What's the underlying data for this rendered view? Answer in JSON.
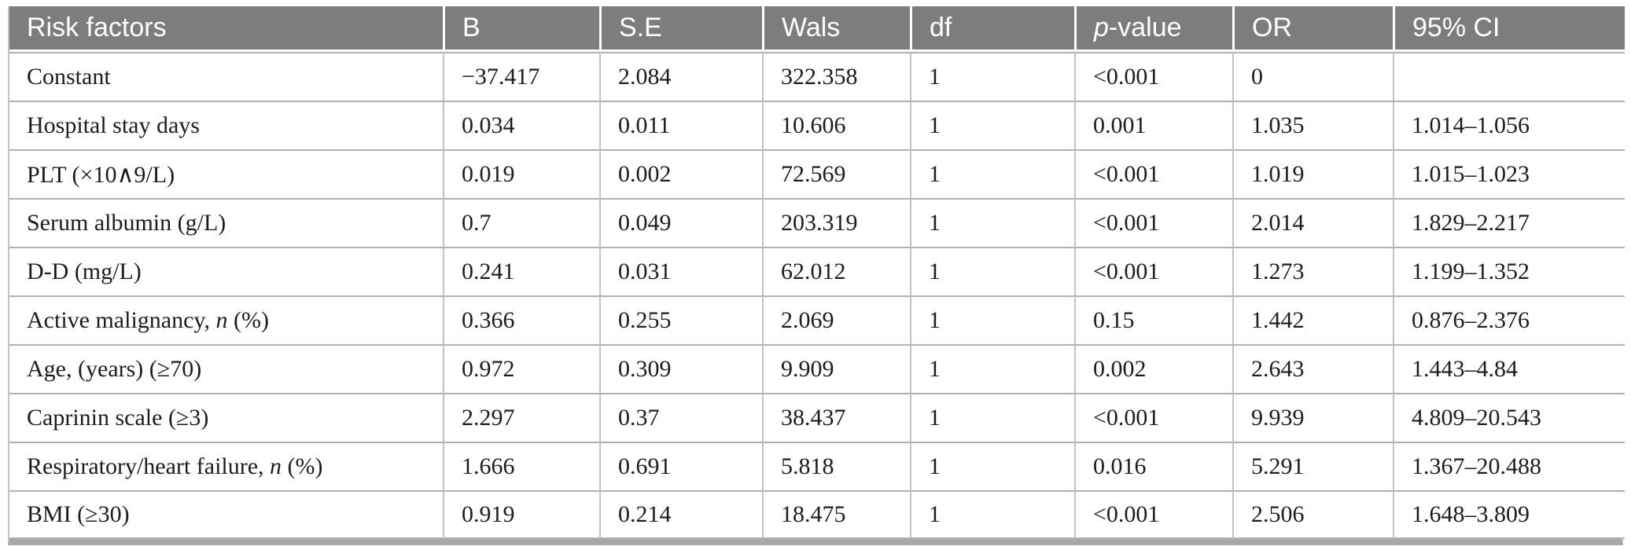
{
  "table": {
    "title": "Risk factors logistic regression table",
    "columns": [
      "Risk factors",
      "B",
      "S.E",
      "Wals",
      "df",
      "*p*-value",
      "OR",
      "95% CI"
    ],
    "rows": [
      [
        "Constant",
        "−37.417",
        "2.084",
        "322.358",
        "1",
        "<0.001",
        "0",
        ""
      ],
      [
        "Hospital stay days",
        "0.034",
        "0.011",
        "10.606",
        "1",
        "0.001",
        "1.035",
        "1.014–1.056"
      ],
      [
        "PLT (×10∧9/L)",
        "0.019",
        "0.002",
        "72.569",
        "1",
        "<0.001",
        "1.019",
        "1.015–1.023"
      ],
      [
        "Serum albumin (g/L)",
        "0.7",
        "0.049",
        "203.319",
        "1",
        "<0.001",
        "2.014",
        "1.829–2.217"
      ],
      [
        "D-D (mg/L)",
        "0.241",
        "0.031",
        "62.012",
        "1",
        "<0.001",
        "1.273",
        "1.199–1.352"
      ],
      [
        "Active malignancy, *n* (%)",
        "0.366",
        "0.255",
        "2.069",
        "1",
        "0.15",
        "1.442",
        "0.876–2.376"
      ],
      [
        "Age, (years) (≥70)",
        "0.972",
        "0.309",
        "9.909",
        "1",
        "0.002",
        "2.643",
        "1.443–4.84"
      ],
      [
        "Caprinin scale (≥3)",
        "2.297",
        "0.37",
        "38.437",
        "1",
        "<0.001",
        "9.939",
        "4.809–20.543"
      ],
      [
        "Respiratory/heart failure, *n* (%)",
        "1.666",
        "0.691",
        "5.818",
        "1",
        "0.016",
        "5.291",
        "1.367–20.488"
      ],
      [
        "BMI (≥30)",
        "0.919",
        "0.214",
        "18.475",
        "1",
        "<0.001",
        "2.506",
        "1.648–3.809"
      ]
    ]
  },
  "colors": {
    "header_bg": "#7d7d7d",
    "header_text": "#ffffff",
    "body_text": "#1c1c1c",
    "row_line": "#b0b0b0",
    "col_line": "#c3c3c3",
    "bottom_bar": "#a8a8a8",
    "page_bg": "#ffffff"
  }
}
